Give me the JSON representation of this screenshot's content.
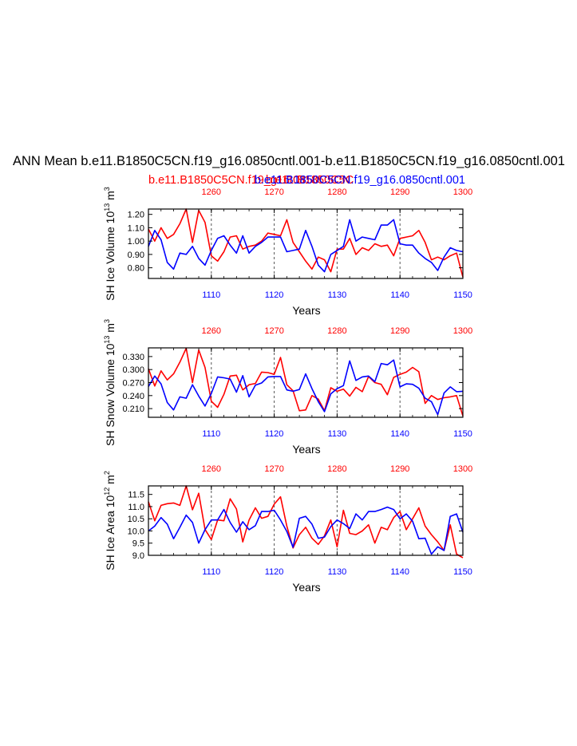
{
  "title": "ANN Mean b.e11.B1850C5CN.f19_g16.0850cntl.001-b.e11.B1850C5CN.f19_g16.0850cntl.001",
  "legend": {
    "red_label": "b.e11.B1850C5CN.f19_g16.0850C5CN",
    "overlap_label": "b.e11.B1850C5C",
    "blue_label": "b.e11.B1850C5CN.f19_g16.0850cntl.001"
  },
  "colors": {
    "red": "#ff0000",
    "blue": "#0000ff",
    "axis": "#000000",
    "refline": "#555555"
  },
  "chart_data": [
    {
      "type": "line",
      "panel": "ice-volume",
      "ylabel": "SH Ice Volume",
      "yunit_base": "10",
      "yunit_exp": "13",
      "yunit_tail": "m",
      "yunit_tail_exp": "3",
      "xlabel": "Years",
      "ylim": [
        0.72,
        1.24
      ],
      "yticks": [
        "0.80",
        "0.90",
        "1.00",
        "1.10",
        "1.20"
      ],
      "x_bottom": {
        "min": 1100,
        "max": 1150,
        "ticks": [
          1110,
          1120,
          1130,
          1140,
          1150
        ]
      },
      "x_top": {
        "min": 1250,
        "max": 1300,
        "ticks": [
          1260,
          1270,
          1280,
          1290,
          1300
        ]
      },
      "ref_lines_x": [
        1110,
        1120,
        1130,
        1140
      ],
      "series": [
        {
          "name": "red",
          "color": "#ff0000",
          "values": [
            1.09,
            1.0,
            1.1,
            1.02,
            1.05,
            1.13,
            1.24,
            0.99,
            1.23,
            1.14,
            0.89,
            0.85,
            0.92,
            1.03,
            1.04,
            0.94,
            0.96,
            0.97,
            1.0,
            1.06,
            1.05,
            1.04,
            1.16,
            0.99,
            0.92,
            0.85,
            0.79,
            0.88,
            0.86,
            0.77,
            0.94,
            0.94,
            1.02,
            0.9,
            0.95,
            0.93,
            0.98,
            0.96,
            0.97,
            0.89,
            1.02,
            1.03,
            1.04,
            1.08,
            0.99,
            0.86,
            0.88,
            0.86,
            0.89,
            0.91,
            0.73
          ]
        },
        {
          "name": "blue",
          "color": "#0000ff",
          "values": [
            0.96,
            1.08,
            1.01,
            0.84,
            0.79,
            0.91,
            0.9,
            0.96,
            0.87,
            0.82,
            0.93,
            1.02,
            1.04,
            0.97,
            0.91,
            1.04,
            0.91,
            0.96,
            0.99,
            1.03,
            1.03,
            1.03,
            0.92,
            0.93,
            0.94,
            1.08,
            0.96,
            0.82,
            0.77,
            0.9,
            0.93,
            0.96,
            1.16,
            1.0,
            1.03,
            1.02,
            1.01,
            1.12,
            1.12,
            1.16,
            0.98,
            0.97,
            0.97,
            0.91,
            0.87,
            0.84,
            0.78,
            0.88,
            0.95,
            0.93,
            0.92
          ]
        }
      ]
    },
    {
      "type": "line",
      "panel": "snow-volume",
      "ylabel": "SH Snow Volume",
      "yunit_base": "10",
      "yunit_exp": "13",
      "yunit_tail": "m",
      "yunit_tail_exp": "3",
      "xlabel": "Years",
      "ylim": [
        0.19,
        0.35
      ],
      "yticks": [
        "0.210",
        "0.240",
        "0.270",
        "0.300",
        "0.330"
      ],
      "x_bottom": {
        "min": 1100,
        "max": 1150,
        "ticks": [
          1110,
          1120,
          1130,
          1140,
          1150
        ]
      },
      "x_top": {
        "min": 1250,
        "max": 1300,
        "ticks": [
          1260,
          1270,
          1280,
          1290,
          1300
        ]
      },
      "ref_lines_x": [
        1110,
        1120,
        1130,
        1140
      ],
      "series": [
        {
          "name": "red",
          "color": "#ff0000",
          "values": [
            0.302,
            0.262,
            0.297,
            0.276,
            0.29,
            0.317,
            0.349,
            0.27,
            0.345,
            0.305,
            0.227,
            0.213,
            0.243,
            0.285,
            0.287,
            0.253,
            0.265,
            0.268,
            0.294,
            0.293,
            0.289,
            0.328,
            0.265,
            0.251,
            0.205,
            0.207,
            0.24,
            0.232,
            0.205,
            0.258,
            0.25,
            0.255,
            0.239,
            0.259,
            0.249,
            0.284,
            0.27,
            0.266,
            0.242,
            0.282,
            0.289,
            0.294,
            0.305,
            0.295,
            0.222,
            0.24,
            0.231,
            0.235,
            0.237,
            0.24,
            0.193
          ]
        },
        {
          "name": "blue",
          "color": "#0000ff",
          "values": [
            0.261,
            0.285,
            0.267,
            0.224,
            0.207,
            0.237,
            0.234,
            0.265,
            0.239,
            0.216,
            0.245,
            0.283,
            0.281,
            0.278,
            0.248,
            0.286,
            0.237,
            0.264,
            0.269,
            0.283,
            0.284,
            0.284,
            0.253,
            0.25,
            0.254,
            0.29,
            0.256,
            0.226,
            0.203,
            0.244,
            0.256,
            0.263,
            0.32,
            0.275,
            0.283,
            0.285,
            0.272,
            0.314,
            0.311,
            0.322,
            0.26,
            0.267,
            0.266,
            0.257,
            0.234,
            0.226,
            0.196,
            0.246,
            0.26,
            0.249,
            0.25
          ]
        }
      ]
    },
    {
      "type": "line",
      "panel": "ice-area",
      "ylabel": "SH Ice Area",
      "yunit_base": "10",
      "yunit_exp": "12",
      "yunit_tail": "m",
      "yunit_tail_exp": "2",
      "xlabel": "Years",
      "ylim": [
        9.0,
        11.85
      ],
      "yticks": [
        "9.0",
        "9.5",
        "10.0",
        "10.5",
        "11.0",
        "11.5"
      ],
      "x_bottom": {
        "min": 1100,
        "max": 1150,
        "ticks": [
          1110,
          1120,
          1130,
          1140,
          1150
        ]
      },
      "x_top": {
        "min": 1250,
        "max": 1300,
        "ticks": [
          1260,
          1270,
          1280,
          1290,
          1300
        ]
      },
      "ref_lines_x": [
        1110,
        1120,
        1130,
        1140
      ],
      "series": [
        {
          "name": "red",
          "color": "#ff0000",
          "values": [
            11.2,
            10.42,
            11.05,
            11.12,
            11.15,
            11.05,
            11.85,
            10.87,
            11.55,
            10.06,
            9.65,
            10.45,
            10.42,
            11.32,
            10.9,
            9.55,
            10.45,
            10.95,
            10.52,
            10.6,
            11.1,
            11.4,
            10.2,
            9.3,
            9.85,
            10.15,
            9.7,
            9.45,
            9.8,
            10.45,
            9.35,
            10.85,
            9.9,
            9.85,
            10.0,
            10.25,
            9.5,
            10.15,
            10.05,
            10.55,
            10.8,
            10.05,
            10.5,
            10.95,
            10.2,
            9.85,
            9.55,
            9.2,
            10.25,
            9.05,
            8.9
          ]
        },
        {
          "name": "blue",
          "color": "#0000ff",
          "values": [
            10.0,
            10.2,
            10.55,
            10.28,
            9.68,
            10.15,
            10.65,
            10.35,
            9.5,
            10.05,
            10.45,
            10.45,
            10.88,
            10.35,
            9.95,
            10.38,
            10.05,
            10.22,
            10.8,
            10.8,
            10.85,
            10.45,
            9.98,
            9.33,
            10.52,
            10.6,
            10.28,
            9.7,
            9.75,
            10.18,
            10.45,
            10.3,
            10.1,
            10.7,
            10.45,
            10.8,
            10.8,
            10.88,
            10.98,
            10.88,
            10.5,
            10.7,
            10.4,
            9.68,
            9.7,
            9.05,
            9.35,
            9.2,
            10.6,
            10.7,
            9.95
          ]
        }
      ]
    }
  ]
}
